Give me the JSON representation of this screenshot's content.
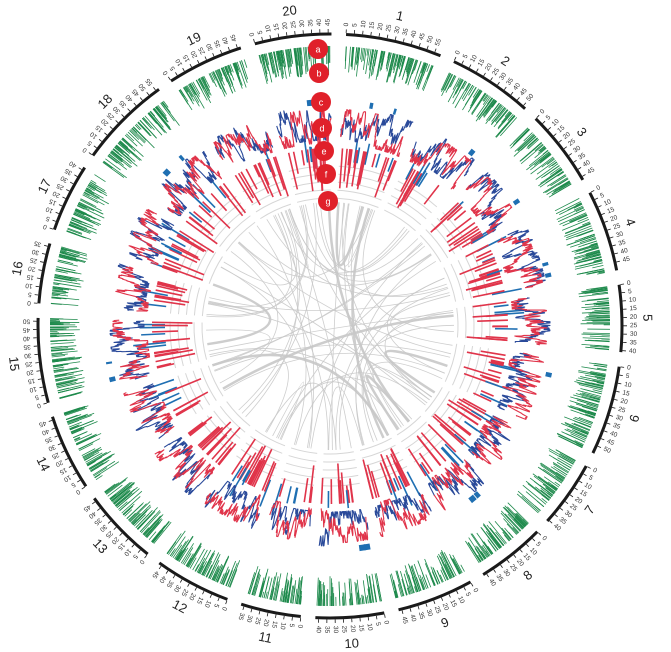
{
  "figure": {
    "title": "",
    "type": "circos genome plot"
  },
  "colors": {
    "background": "#ffffff",
    "ideogram": "#1a1a1a",
    "gene_density": "#1e8a4c",
    "blocks": "#1f6fb2",
    "line_red": "#e0344a",
    "line_blue": "#2a4a9a",
    "tile_red": "#e0344a",
    "tile_blue": "#1f6fb2",
    "grid": "#d6d6d6",
    "link": "#c8c8c8",
    "badge": "#e0202a",
    "badge_text": "#ffffff"
  },
  "chromosomes": [
    {
      "name": "1",
      "length": 59,
      "ticks": [
        "0",
        "5",
        "10",
        "15",
        "20",
        "25",
        "30",
        "35",
        "40",
        "45",
        "50",
        "55"
      ]
    },
    {
      "name": "2",
      "length": 52,
      "ticks": [
        "0",
        "5",
        "10",
        "15",
        "20",
        "25",
        "30",
        "35",
        "40",
        "45",
        "50"
      ]
    },
    {
      "name": "3",
      "length": 47,
      "ticks": [
        "0",
        "5",
        "10",
        "15",
        "20",
        "25",
        "30",
        "35",
        "40",
        "45"
      ]
    },
    {
      "name": "4",
      "length": 50,
      "ticks": [
        "0",
        "5",
        "10",
        "15",
        "20",
        "25",
        "30",
        "35",
        "40",
        "45"
      ]
    },
    {
      "name": "5",
      "length": 41,
      "ticks": [
        "0",
        "5",
        "10",
        "15",
        "20",
        "25",
        "30",
        "35",
        "40"
      ]
    },
    {
      "name": "6",
      "length": 55,
      "ticks": [
        "0",
        "5",
        "10",
        "15",
        "20",
        "25",
        "30",
        "35",
        "40",
        "45",
        "50"
      ]
    },
    {
      "name": "7",
      "length": 41,
      "ticks": [
        "0",
        "5",
        "10",
        "15",
        "20",
        "25",
        "30",
        "35",
        "40"
      ]
    },
    {
      "name": "8",
      "length": 42,
      "ticks": [
        "0",
        "5",
        "10",
        "15",
        "20",
        "25",
        "30",
        "35",
        "40"
      ]
    },
    {
      "name": "9",
      "length": 47,
      "ticks": [
        "0",
        "5",
        "10",
        "15",
        "20",
        "25",
        "30",
        "35",
        "40",
        "45"
      ]
    },
    {
      "name": "10",
      "length": 42,
      "ticks": [
        "0",
        "5",
        "10",
        "15",
        "20",
        "25",
        "30",
        "35",
        "40"
      ]
    },
    {
      "name": "11",
      "length": 37,
      "ticks": [
        "0",
        "5",
        "10",
        "15",
        "20",
        "25",
        "30",
        "35"
      ]
    },
    {
      "name": "12",
      "length": 47,
      "ticks": [
        "0",
        "5",
        "10",
        "15",
        "20",
        "25",
        "30",
        "35",
        "40",
        "45"
      ]
    },
    {
      "name": "13",
      "length": 47,
      "ticks": [
        "0",
        "5",
        "10",
        "15",
        "20",
        "25",
        "30",
        "35",
        "40",
        "45"
      ]
    },
    {
      "name": "14",
      "length": 47,
      "ticks": [
        "0",
        "5",
        "10",
        "15",
        "20",
        "25",
        "30",
        "35",
        "40",
        "45"
      ]
    },
    {
      "name": "15",
      "length": 52,
      "ticks": [
        "0",
        "5",
        "10",
        "15",
        "20",
        "25",
        "30",
        "35",
        "40",
        "45",
        "50"
      ]
    },
    {
      "name": "16",
      "length": 37,
      "ticks": [
        "0",
        "5",
        "10",
        "15",
        "20",
        "25",
        "30",
        "35"
      ]
    },
    {
      "name": "17",
      "length": 42,
      "ticks": [
        "0",
        "5",
        "10",
        "15",
        "20",
        "25",
        "30",
        "35",
        "40"
      ]
    },
    {
      "name": "18",
      "length": 57,
      "ticks": [
        "0",
        "5",
        "10",
        "15",
        "20",
        "25",
        "30",
        "35",
        "40",
        "45",
        "50",
        "55"
      ]
    },
    {
      "name": "19",
      "length": 47,
      "ticks": [
        "0",
        "5",
        "10",
        "15",
        "20",
        "25",
        "30",
        "35",
        "40",
        "45"
      ]
    },
    {
      "name": "20",
      "length": 47,
      "ticks": [
        "0",
        "5",
        "10",
        "15",
        "20",
        "25",
        "30",
        "35",
        "40",
        "45"
      ]
    }
  ],
  "track_badges": [
    "a",
    "b",
    "c",
    "d",
    "e",
    "f",
    "g"
  ]
}
